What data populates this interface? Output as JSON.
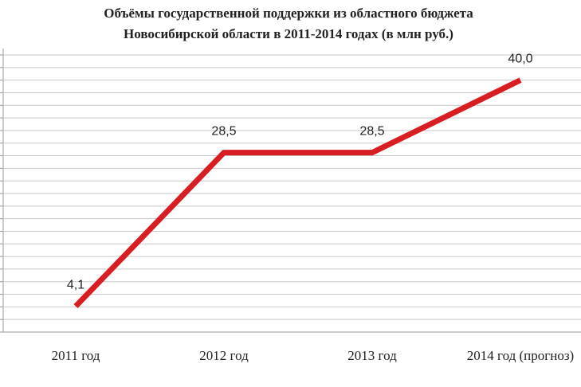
{
  "chart_data": {
    "type": "line",
    "title": [
      "Объёмы государственной поддержки из областного бюджета",
      "Новосибирской области в 2011-2014 годах (в млн руб.)"
    ],
    "categories": [
      "2011 год",
      "2012 год",
      "2013 год",
      "2014 год (прогноз)"
    ],
    "series": [
      {
        "color": "#d81e22",
        "values": [
          4.1,
          28.5,
          28.5,
          40.0
        ],
        "value_labels": [
          "4,1",
          "28,5",
          "28,5",
          "40,0"
        ]
      }
    ],
    "ylim": [
      0,
      44
    ],
    "yticks": [
      0,
      2,
      4,
      6,
      8,
      10,
      12,
      14,
      16,
      18,
      20,
      22,
      24,
      26,
      28,
      30,
      32,
      34,
      36,
      38,
      40,
      42,
      44
    ],
    "grid": true
  }
}
